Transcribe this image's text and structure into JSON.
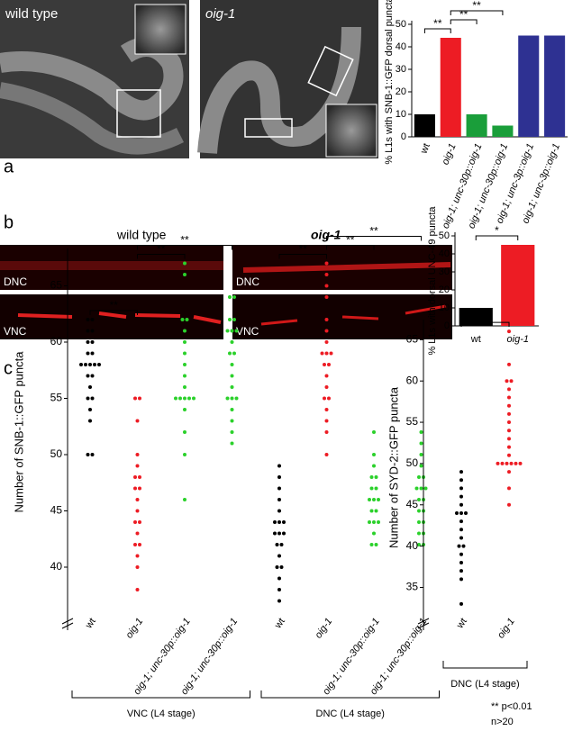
{
  "panel_labels": [
    "a",
    "b",
    "c"
  ],
  "images": {
    "a": [
      "wild type",
      "oig-1"
    ],
    "b": [
      "wild type",
      "oig-1"
    ],
    "b_tags": [
      "DNC",
      "VNC",
      "DNC",
      "VNC"
    ]
  },
  "footnote": [
    "** p<0.01",
    "n>20"
  ],
  "chart_data": [
    {
      "type": "bar",
      "ylabel": "% L1s with SNB-1::GFP dorsal puncta",
      "categories": [
        "wt",
        "oig-1",
        "oig-1; unc-30p::oig-1",
        "oig-1; unc-30p::oig-1",
        "oig-1; unc-3p::oig-1",
        "oig-1; unc-3p::oig-1"
      ],
      "values": [
        10,
        44,
        10,
        5,
        45,
        45
      ],
      "colors": [
        "#000000",
        "#ed1c24",
        "#1a9e3a",
        "#1a9e3a",
        "#2e3192",
        "#2e3192"
      ],
      "ylim": [
        0,
        50
      ],
      "yticks": [
        0,
        10,
        20,
        30,
        40,
        50
      ],
      "annotations": [
        {
          "text": "**",
          "from": 0,
          "to": 1
        },
        {
          "text": "**",
          "from": 1,
          "to": 2
        },
        {
          "text": "**",
          "from": 1,
          "to": 3
        }
      ]
    },
    {
      "type": "bar",
      "ylabel": "% L1s with dorsal UNC-49 puncta",
      "categories": [
        "wt",
        "oig-1"
      ],
      "values": [
        10,
        45
      ],
      "colors": [
        "#000000",
        "#ed1c24"
      ],
      "ylim": [
        0,
        50
      ],
      "yticks": [
        0,
        10,
        20,
        30,
        40,
        50
      ],
      "annotations": [
        {
          "text": "*",
          "from": 0,
          "to": 1
        }
      ]
    },
    {
      "type": "strip",
      "ylabel": "Number of SNB-1::GFP puncta",
      "categories": [
        "wt",
        "oig-1",
        "oig-1; unc-30p::oig-1",
        "oig-1; unc-30p::oig-1",
        "wt",
        "oig-1",
        "oig-1; unc-30p::oig-1",
        "oig-1; unc-30p::oig-1"
      ],
      "colors": [
        "#000000",
        "#ed1c24",
        "#2bd12b",
        "#2bd12b",
        "#000000",
        "#ed1c24",
        "#2bd12b",
        "#2bd12b"
      ],
      "values": [
        [
          62,
          62,
          61,
          61,
          60,
          60,
          59,
          59,
          58,
          58,
          58,
          58,
          58,
          57,
          57,
          56,
          55,
          55,
          54,
          53,
          50,
          50
        ],
        [
          55,
          55,
          53,
          50,
          49,
          48,
          48,
          47,
          47,
          46,
          45,
          44,
          44,
          43,
          42,
          42,
          41,
          40,
          38
        ],
        [
          67,
          66,
          62,
          62,
          61,
          60,
          59,
          58,
          57,
          56,
          55,
          55,
          55,
          55,
          55,
          54,
          52,
          50,
          46
        ],
        [
          64,
          64,
          62,
          62,
          61,
          61,
          61,
          60,
          59,
          59,
          58,
          57,
          56,
          55,
          55,
          55,
          54,
          53,
          52,
          51
        ],
        [
          49,
          48,
          47,
          46,
          45,
          44,
          44,
          44,
          43,
          43,
          43,
          42,
          42,
          41,
          40,
          40,
          39,
          38,
          37
        ],
        [
          67,
          66,
          65,
          64,
          62,
          61,
          60,
          59,
          59,
          59,
          58,
          58,
          57,
          56,
          55,
          55,
          54,
          53,
          52,
          50
        ],
        [
          52,
          50,
          49,
          48,
          48,
          47,
          47,
          46,
          46,
          46,
          45,
          45,
          44,
          44,
          44,
          43,
          42,
          42
        ],
        [
          52,
          51,
          50,
          49,
          48,
          48,
          47,
          47,
          47,
          46,
          46,
          45,
          45,
          44,
          44,
          43,
          43,
          42,
          42
        ]
      ],
      "ylim": [
        36,
        68
      ],
      "yticks": [
        40,
        45,
        50,
        55,
        60,
        65
      ],
      "groups": [
        {
          "label": "VNC (L4 stage)",
          "from": 0,
          "to": 3
        },
        {
          "label": "DNC (L4 stage)",
          "from": 4,
          "to": 7
        }
      ],
      "annotations": [
        {
          "text": "**",
          "from": 0,
          "to": 1
        },
        {
          "text": "**",
          "from": 1,
          "to": 2
        },
        {
          "text": "**",
          "from": 1,
          "to": 3
        },
        {
          "text": "**",
          "from": 4,
          "to": 5
        },
        {
          "text": "**",
          "from": 5,
          "to": 6
        },
        {
          "text": "**",
          "from": 5,
          "to": 7
        }
      ]
    },
    {
      "type": "strip",
      "ylabel": "Number of SYD-2::GFP puncta",
      "categories": [
        "wt",
        "oig-1"
      ],
      "colors": [
        "#000000",
        "#ed1c24"
      ],
      "values": [
        [
          49,
          48,
          47,
          46,
          45,
          44,
          44,
          44,
          43,
          42,
          41,
          40,
          40,
          39,
          38,
          37,
          36,
          33
        ],
        [
          66,
          62,
          60,
          60,
          59,
          58,
          57,
          56,
          55,
          54,
          53,
          52,
          51,
          50,
          50,
          50,
          50,
          50,
          50,
          49,
          47,
          45
        ]
      ],
      "ylim": [
        32,
        67
      ],
      "yticks": [
        35,
        40,
        45,
        50,
        55,
        60,
        65
      ],
      "groups": [
        {
          "label": "DNC (L4 stage)",
          "from": 0,
          "to": 1
        }
      ],
      "annotations": [
        {
          "text": "**",
          "from": 0,
          "to": 1
        }
      ]
    }
  ]
}
